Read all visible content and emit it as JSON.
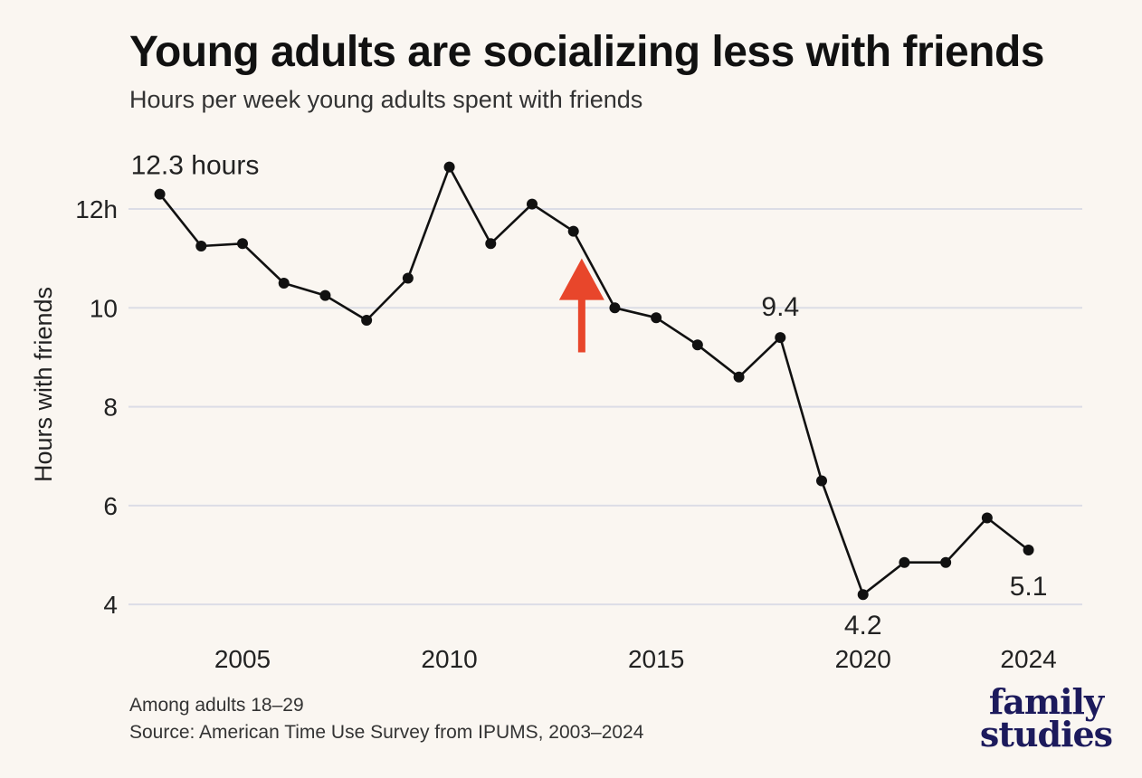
{
  "header": {
    "title": "Young adults are socializing less with friends",
    "subtitle": "Hours per week young adults spent with friends"
  },
  "footer": {
    "note": "Among adults 18–29",
    "source": "Source: American Time Use Survey from IPUMS, 2003–2024"
  },
  "logo": {
    "line1": "family",
    "line2": "studies",
    "color": "#1c1a5c"
  },
  "colors": {
    "background": "#faf6f1",
    "line": "#111111",
    "grid": "#dcdde6",
    "arrow": "#e8462b"
  },
  "chart_data": {
    "type": "line",
    "title": "Young adults are socializing less with friends",
    "subtitle": "Hours per week young adults spent with friends",
    "xlabel": "",
    "ylabel": "Hours with friends",
    "x": [
      2003,
      2004,
      2005,
      2006,
      2007,
      2008,
      2009,
      2010,
      2011,
      2012,
      2013,
      2014,
      2015,
      2016,
      2017,
      2018,
      2019,
      2020,
      2021,
      2022,
      2023,
      2024
    ],
    "series": [
      {
        "values": [
          12.3,
          11.25,
          11.3,
          10.5,
          10.25,
          9.75,
          10.6,
          12.85,
          11.3,
          12.1,
          11.55,
          10.0,
          9.8,
          9.25,
          8.6,
          9.4,
          6.5,
          4.2,
          4.85,
          4.85,
          5.75,
          5.1
        ]
      }
    ],
    "xlim": [
      2002.2,
      2025.3
    ],
    "ylim": [
      3.6,
      13.3
    ],
    "x_ticks": [
      2005,
      2010,
      2015,
      2020,
      2024
    ],
    "x_tick_labels": [
      "2005",
      "2010",
      "2015",
      "2020",
      "2024"
    ],
    "y_ticks": [
      4,
      6,
      8,
      10,
      12
    ],
    "y_tick_labels": [
      "4",
      "6",
      "8",
      "10",
      "12h"
    ],
    "grid": true,
    "legend": "none",
    "annotations": [
      {
        "text": "12.3 hours",
        "x": 2003,
        "y": 12.3,
        "position": "above"
      },
      {
        "text": "9.4",
        "x": 2018,
        "y": 9.4,
        "position": "above"
      },
      {
        "text": "4.2",
        "x": 2020,
        "y": 4.2,
        "position": "below"
      },
      {
        "text": "5.1",
        "x": 2024,
        "y": 5.1,
        "position": "below"
      }
    ],
    "marker": {
      "type": "arrow",
      "x": 2013.2,
      "y_from": 9.1,
      "y_to": 11.0,
      "color": "#e8462b"
    }
  }
}
